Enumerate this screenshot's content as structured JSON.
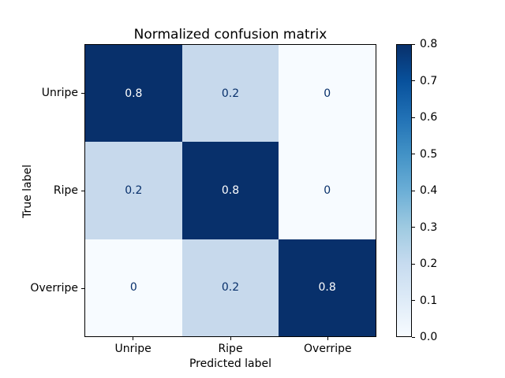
{
  "chart_data": {
    "type": "heatmap",
    "title": "Normalized confusion matrix",
    "xlabel": "Predicted label",
    "ylabel": "True label",
    "categories": [
      "Unripe",
      "Ripe",
      "Overripe"
    ],
    "matrix": [
      [
        0.8,
        0.2,
        0
      ],
      [
        0.2,
        0.8,
        0
      ],
      [
        0,
        0.2,
        0.8
      ]
    ],
    "cell_labels": [
      [
        "0.8",
        "0.2",
        "0"
      ],
      [
        "0.2",
        "0.8",
        "0"
      ],
      [
        "0",
        "0.2",
        "0.8"
      ]
    ],
    "vmin": 0.0,
    "vmax": 0.8,
    "colormap": "Blues",
    "value_colors": {
      "0": "#f7fbff",
      "0.2": "#c7d9ec",
      "0.8": "#08306b"
    },
    "cell_text_dark": "#08306b",
    "cell_text_light": "#ffffff",
    "colorbar": {
      "tick_labels": [
        "0.8",
        "0.7",
        "0.6",
        "0.5",
        "0.4",
        "0.3",
        "0.2",
        "0.1",
        "0.0"
      ],
      "gradient_top_to_bottom": [
        "#08306b",
        "#08519c",
        "#2171b5",
        "#4292c6",
        "#6baed6",
        "#9ecae1",
        "#c6dbef",
        "#deebf7",
        "#f7fbff"
      ]
    },
    "legend_position": "right",
    "grid": false,
    "background": "#ffffff"
  }
}
